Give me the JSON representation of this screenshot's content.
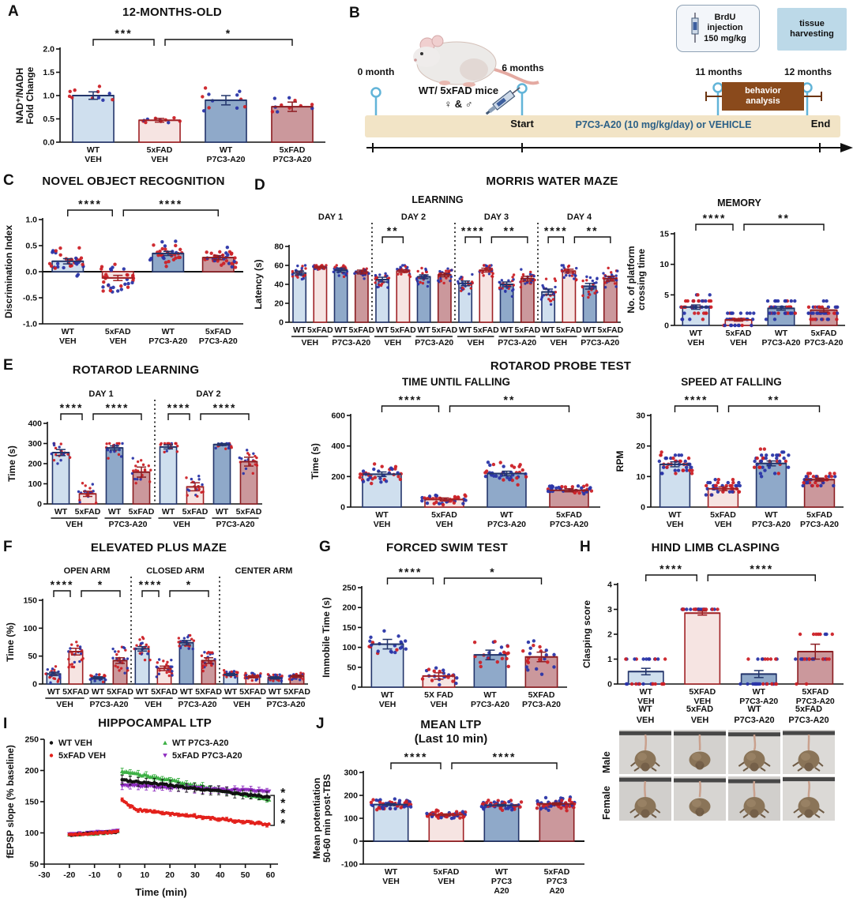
{
  "palette": {
    "bar_fills": [
      "#cfdfee",
      "#f6e4e2",
      "#8fa9c9",
      "#cb989c"
    ],
    "bar_strokes": [
      "#23356b",
      "#a02125",
      "#23356b",
      "#8c1d22"
    ],
    "point_red": "#cc2127",
    "point_blue": "#2a35a8",
    "axis": "#111111"
  },
  "groups": {
    "morris": {
      "title": "MORRIS WATER MAZE"
    },
    "rotarod_probe": {
      "title": "ROTAROD PROBE TEST"
    }
  },
  "timeline": {
    "panel": "B",
    "milestones": [
      "0 month",
      "6 months",
      "11 months",
      "12 months"
    ],
    "mice_line1": "WT/ 5xFAD mice",
    "mice_line2": "♀ & ♂",
    "start_label": "Start",
    "band_label": "P7C3-A20 (10 mg/kg/day) or VEHICLE",
    "end_label": "End",
    "brdu_line1": "BrdU",
    "brdu_line2": "injection",
    "brdu_line3": "150 mg/kg",
    "tissue_line1": "tissue",
    "tissue_line2": "harvesting",
    "behavior_line1": "behavior",
    "behavior_line2": "analysis"
  },
  "photos": {
    "columns": [
      [
        "WT",
        "VEH"
      ],
      [
        "5xFAD",
        "VEH"
      ],
      [
        "WT",
        "P7C3-A20"
      ],
      [
        "5xFAD",
        "P7C3-A20"
      ]
    ],
    "rows": [
      "Male",
      "Female"
    ]
  },
  "chart_data": [
    {
      "panel": "A",
      "type": "bar",
      "title": "12-MONTHS-OLD",
      "ylabel": [
        "NAD⁺/NADH",
        "Fold Change"
      ],
      "ylim": [
        0,
        2
      ],
      "yticks": [
        0,
        0.5,
        1,
        1.5,
        2
      ],
      "ytick_labels": [
        "0.0",
        "0.5",
        "1.0",
        "1.5",
        "2.0"
      ],
      "categories": [
        [
          "WT",
          "VEH"
        ],
        [
          "5xFAD",
          "VEH"
        ],
        [
          "WT",
          "P7C3-A20"
        ],
        [
          "5xFAD",
          "P7C3-A20"
        ]
      ],
      "values": [
        1.0,
        0.47,
        0.9,
        0.76
      ],
      "errors": [
        0.08,
        0.04,
        0.1,
        0.1
      ],
      "npts": 11,
      "spread": [
        0.25,
        0.09,
        0.3,
        0.26
      ],
      "point_cap": 1.52,
      "point_floor": 0.3,
      "brackets": [
        {
          "a": 0,
          "b": 1,
          "stars": "***"
        },
        {
          "a": 1,
          "b": 3,
          "stars": "*"
        }
      ],
      "ml": 58
    },
    {
      "panel": "C",
      "type": "bar",
      "title": "NOVEL OBJECT RECOGNITION",
      "ylabel": "Discrimination Index",
      "ylim": [
        -1,
        1
      ],
      "yticks": [
        -1,
        -0.5,
        0,
        0.5,
        1
      ],
      "ytick_labels": [
        "-1.0",
        "-0.5",
        "0.0",
        "0.5",
        "1.0"
      ],
      "categories": [
        [
          "WT",
          "VEH"
        ],
        [
          "5xFAD",
          "VEH"
        ],
        [
          "WT",
          "P7C3-A20"
        ],
        [
          "5xFAD",
          "P7C3-A20"
        ]
      ],
      "values": [
        0.2,
        -0.12,
        0.35,
        0.27
      ],
      "errors": [
        0.05,
        0.05,
        0.04,
        0.04
      ],
      "npts": 34,
      "spread": [
        0.32,
        0.34,
        0.28,
        0.22
      ],
      "point_cap": 0.92,
      "point_floor": -0.85,
      "brackets": [
        {
          "a": 0,
          "b": 1,
          "stars": "****"
        },
        {
          "a": 1,
          "b": 3,
          "stars": "****"
        }
      ],
      "ml": 50
    },
    {
      "panel": "D",
      "type": "bar",
      "subtitle": "LEARNING",
      "ylabel": "Latency (s)",
      "ylim": [
        0,
        80
      ],
      "yticks": [
        0,
        20,
        40,
        60,
        80
      ],
      "ytick_labels": [
        "0",
        "20",
        "40",
        "60",
        "80"
      ],
      "categories": [
        [
          "WT"
        ],
        [
          "5xFAD"
        ],
        [
          "WT"
        ],
        [
          "5xFAD"
        ],
        [
          "WT"
        ],
        [
          "5xFAD"
        ],
        [
          "WT"
        ],
        [
          "5xFAD"
        ],
        [
          "WT"
        ],
        [
          "5xFAD"
        ],
        [
          "WT"
        ],
        [
          "5xFAD"
        ],
        [
          "WT"
        ],
        [
          "5xFAD"
        ],
        [
          "WT"
        ],
        [
          "5xFAD"
        ]
      ],
      "values": [
        52,
        58,
        55,
        53,
        45,
        54,
        48,
        50,
        41,
        55,
        40,
        46,
        32,
        54,
        38,
        46
      ],
      "errors": [
        2,
        1,
        2,
        2,
        2.5,
        1.5,
        2,
        2,
        2.5,
        2,
        2.5,
        2.5,
        3,
        2,
        3,
        2.5
      ],
      "npts": 26,
      "spread": [
        10,
        5,
        8,
        8,
        12,
        8,
        12,
        10,
        14,
        8,
        14,
        12,
        16,
        10,
        14,
        12
      ],
      "point_cap": 60,
      "point_floor": 8,
      "sections": [
        {
          "t": "DAY 1",
          "a": 0,
          "b": 3
        },
        {
          "t": "DAY 2",
          "a": 4,
          "b": 7
        },
        {
          "t": "DAY 3",
          "a": 8,
          "b": 11
        },
        {
          "t": "DAY 4",
          "a": 12,
          "b": 15
        }
      ],
      "underlines": [
        {
          "t": "VEH",
          "a": 0,
          "b": 1
        },
        {
          "t": "P7C3-A20",
          "a": 2,
          "b": 3
        },
        {
          "t": "VEH",
          "a": 4,
          "b": 5
        },
        {
          "t": "P7C3-A20",
          "a": 6,
          "b": 7
        },
        {
          "t": "VEH",
          "a": 8,
          "b": 9
        },
        {
          "t": "P7C3-A20",
          "a": 10,
          "b": 11
        },
        {
          "t": "VEH",
          "a": 12,
          "b": 13
        },
        {
          "t": "P7C3-A20",
          "a": 14,
          "b": 15
        }
      ],
      "brackets": [
        {
          "a": 4,
          "b": 5,
          "stars": "**"
        },
        {
          "a": 8,
          "b": 9,
          "stars": "****"
        },
        {
          "a": 9,
          "b": 11,
          "stars": "**"
        },
        {
          "a": 12,
          "b": 13,
          "stars": "****"
        },
        {
          "a": 13,
          "b": 15,
          "stars": "**"
        }
      ],
      "ml": 46,
      "mr": 4
    },
    {
      "type": "bar",
      "subtitle": "MEMORY",
      "ylabel": [
        "No. of platform",
        "crossing time"
      ],
      "ylim": [
        0,
        15
      ],
      "yticks": [
        0,
        5,
        10,
        15
      ],
      "ytick_labels": [
        "0",
        "5",
        "10",
        "15"
      ],
      "categories": [
        [
          "WT",
          "VEH"
        ],
        [
          "5xFAD",
          "VEH"
        ],
        [
          "WT",
          "P7C3-A20"
        ],
        [
          "5xFAD",
          "P7C3-A20"
        ]
      ],
      "values": [
        3,
        0.9,
        2.8,
        2.5
      ],
      "errors": [
        0.35,
        0.2,
        0.3,
        0.3
      ],
      "npts": 40,
      "spread": [
        2.6,
        1.4,
        2.1,
        2.1
      ],
      "point_cap": 10,
      "point_floor": 0,
      "round": 1,
      "brackets": [
        {
          "a": 0,
          "b": 1,
          "stars": "****"
        },
        {
          "a": 1,
          "b": 3,
          "stars": "**"
        }
      ],
      "ml": 62
    },
    {
      "panel": "E",
      "type": "bar",
      "title": "ROTAROD LEARNING",
      "ylabel": "Time (s)",
      "ylim": [
        0,
        400
      ],
      "yticks": [
        0,
        100,
        200,
        300,
        400
      ],
      "ytick_labels": [
        "0",
        "100",
        "200",
        "300",
        "400"
      ],
      "categories": [
        [
          "WT"
        ],
        [
          "5xFAD"
        ],
        [
          "WT"
        ],
        [
          "5xFAD"
        ],
        [
          "WT"
        ],
        [
          "5xFAD"
        ],
        [
          "WT"
        ],
        [
          "5xFAD"
        ]
      ],
      "values": [
        255,
        50,
        278,
        158,
        283,
        85,
        295,
        210
      ],
      "errors": [
        15,
        13,
        10,
        25,
        10,
        20,
        5,
        22
      ],
      "npts": 20,
      "spread": [
        80,
        60,
        70,
        90,
        60,
        70,
        30,
        80
      ],
      "point_cap": 300,
      "point_floor": 5,
      "sections": [
        {
          "t": "DAY 1",
          "a": 0,
          "b": 3
        },
        {
          "t": "DAY 2",
          "a": 4,
          "b": 7
        }
      ],
      "underlines": [
        {
          "t": "VEH",
          "a": 0,
          "b": 1
        },
        {
          "t": "P7C3-A20",
          "a": 2,
          "b": 3
        },
        {
          "t": "VEH",
          "a": 4,
          "b": 5
        },
        {
          "t": "P7C3-A20",
          "a": 6,
          "b": 7
        }
      ],
      "brackets": [
        {
          "a": 0,
          "b": 1,
          "stars": "****"
        },
        {
          "a": 1,
          "b": 3,
          "stars": "****"
        },
        {
          "a": 4,
          "b": 5,
          "stars": "****"
        },
        {
          "a": 5,
          "b": 7,
          "stars": "****"
        }
      ],
      "ml": 52
    },
    {
      "type": "bar",
      "subtitle": "TIME UNTIL FALLING",
      "ylabel": "Time (s)",
      "ylim": [
        0,
        600
      ],
      "yticks": [
        0,
        200,
        400,
        600
      ],
      "ytick_labels": [
        "0",
        "200",
        "400",
        "600"
      ],
      "categories": [
        [
          "WT",
          "VEH"
        ],
        [
          "5xFAD",
          "VEH"
        ],
        [
          "WT",
          "P7C3-A20"
        ],
        [
          "5xFAD",
          "P7C3-A20"
        ]
      ],
      "values": [
        215,
        50,
        220,
        110
      ],
      "errors": [
        15,
        10,
        15,
        10
      ],
      "npts": 38,
      "spread": [
        75,
        45,
        95,
        55
      ],
      "point_cap": 500,
      "point_floor": 10,
      "brackets": [
        {
          "a": 0,
          "b": 1,
          "stars": "****"
        },
        {
          "a": 1,
          "b": 3,
          "stars": "**"
        }
      ],
      "ml": 52
    },
    {
      "type": "bar",
      "subtitle": "SPEED AT FALLING",
      "ylabel": "RPM",
      "ylim": [
        0,
        30
      ],
      "yticks": [
        0,
        10,
        20,
        30
      ],
      "ytick_labels": [
        "0",
        "10",
        "20",
        "30"
      ],
      "categories": [
        [
          "WT",
          "VEH"
        ],
        [
          "5xFAD",
          "VEH"
        ],
        [
          "WT",
          "P7C3-A20"
        ],
        [
          "5xFAD",
          "P7C3-A20"
        ]
      ],
      "values": [
        14,
        6,
        14.3,
        9
      ],
      "errors": [
        0.8,
        0.6,
        0.8,
        0.5
      ],
      "npts": 42,
      "spread": [
        4.5,
        3,
        5.5,
        2.8
      ],
      "point_cap": 28,
      "point_floor": 3,
      "round": 1,
      "brackets": [
        {
          "a": 0,
          "b": 1,
          "stars": "****"
        },
        {
          "a": 1,
          "b": 3,
          "stars": "**"
        }
      ],
      "ml": 46
    },
    {
      "panel": "F",
      "type": "bar",
      "title": "ELEVATED PLUS MAZE",
      "ylabel": "Time (%)",
      "ylim": [
        0,
        150
      ],
      "yticks": [
        0,
        50,
        100,
        150
      ],
      "ytick_labels": [
        "0",
        "50",
        "100",
        "150"
      ],
      "categories": [
        [
          "WT"
        ],
        [
          "5XFAD"
        ],
        [
          "WT"
        ],
        [
          "5XFAD"
        ],
        [
          "WT"
        ],
        [
          "5XFAD"
        ],
        [
          "WT"
        ],
        [
          "5XFAD"
        ],
        [
          "WT"
        ],
        [
          "5XFAD"
        ],
        [
          "WT"
        ],
        [
          "5XFAD"
        ]
      ],
      "values": [
        18,
        58,
        11,
        42,
        63,
        28,
        74,
        42,
        17,
        13,
        11,
        14
      ],
      "errors": [
        3,
        6,
        2,
        5,
        4,
        4,
        4,
        5,
        2,
        2,
        2,
        2
      ],
      "npts": 24,
      "spread": [
        18,
        32,
        9,
        30,
        24,
        20,
        14,
        24,
        11,
        9,
        8,
        10
      ],
      "point_cap": 100,
      "point_floor": 0,
      "sections": [
        {
          "t": "OPEN ARM",
          "a": 0,
          "b": 3
        },
        {
          "t": "CLOSED ARM",
          "a": 4,
          "b": 7
        },
        {
          "t": "CENTER ARM",
          "a": 8,
          "b": 11
        }
      ],
      "underlines": [
        {
          "t": "VEH",
          "a": 0,
          "b": 1
        },
        {
          "t": "P7C3-A20",
          "a": 2,
          "b": 3
        },
        {
          "t": "VEH",
          "a": 4,
          "b": 5
        },
        {
          "t": "P7C3-A20",
          "a": 6,
          "b": 7
        },
        {
          "t": "VEH",
          "a": 8,
          "b": 9
        },
        {
          "t": "P7C3-A20",
          "a": 10,
          "b": 11
        }
      ],
      "brackets": [
        {
          "a": 0,
          "b": 1,
          "stars": "****"
        },
        {
          "a": 1,
          "b": 3,
          "stars": "*"
        },
        {
          "a": 4,
          "b": 5,
          "stars": "****"
        },
        {
          "a": 5,
          "b": 7,
          "stars": "*"
        }
      ],
      "ml": 48
    },
    {
      "panel": "G",
      "type": "bar",
      "title": "FORCED SWIM TEST",
      "ylabel": "Immobile Time (s)",
      "ylim": [
        0,
        250
      ],
      "yticks": [
        0,
        50,
        100,
        150,
        200,
        250
      ],
      "ytick_labels": [
        "0",
        "50",
        "100",
        "150",
        "200",
        "250"
      ],
      "categories": [
        [
          "WT",
          "VEH"
        ],
        [
          "5X FAD",
          "VEH"
        ],
        [
          "WT",
          "P7C3-A20"
        ],
        [
          "5XFAD",
          "P7C3-A20"
        ]
      ],
      "values": [
        108,
        28,
        81,
        76
      ],
      "errors": [
        12,
        8,
        12,
        12
      ],
      "npts": 22,
      "spread": [
        48,
        28,
        48,
        58
      ],
      "point_cap": 205,
      "point_floor": 2,
      "brackets": [
        {
          "a": 0,
          "b": 1,
          "stars": "****"
        },
        {
          "a": 1,
          "b": 3,
          "stars": "*"
        }
      ],
      "ml": 52
    },
    {
      "panel": "H",
      "type": "bar",
      "title": "HIND LIMB CLASPING",
      "ylabel": "Clasping score",
      "ylim": [
        0,
        4
      ],
      "yticks": [
        0,
        1,
        2,
        3,
        4
      ],
      "ytick_labels": [
        "0",
        "1",
        "2",
        "3",
        "4"
      ],
      "categories": [
        [
          "WT",
          "VEH"
        ],
        [
          "5XFAD",
          "VEH"
        ],
        [
          "WT",
          "P7C3-A20"
        ],
        [
          "5XFAD",
          "P7C3-A20"
        ]
      ],
      "values": [
        0.5,
        2.85,
        0.4,
        1.3
      ],
      "errors": [
        0.13,
        0.08,
        0.14,
        0.3
      ],
      "npts": 26,
      "spread": [
        0.6,
        0.4,
        0.6,
        1.3
      ],
      "point_cap": 3,
      "point_floor": 0,
      "round": 1,
      "brackets": [
        {
          "a": 0,
          "b": 1,
          "stars": "****"
        },
        {
          "a": 1,
          "b": 3,
          "stars": "****"
        }
      ],
      "ml": 46
    },
    {
      "panel": "I",
      "type": "line",
      "title": "HIPPOCAMPAL LTP",
      "xlabel": "Time (min)",
      "ylabel": "fEPSP slope (% baseline)",
      "xlim": [
        -30,
        63
      ],
      "ylim": [
        50,
        250
      ],
      "xticks": [
        -30,
        -20,
        -10,
        0,
        10,
        20,
        30,
        40,
        50,
        60
      ],
      "yticks": [
        50,
        100,
        150,
        200,
        250
      ],
      "series": [
        {
          "name": "WT VEH",
          "color": "#111111",
          "marker": "circle",
          "baseline": [
            97,
            102
          ],
          "post_start": 185,
          "post_end": 157,
          "err": 7
        },
        {
          "name": "5xFAD VEH",
          "color": "#e3201b",
          "marker": "circle",
          "baseline": [
            97,
            102
          ],
          "post_start": 152,
          "post_end": 113,
          "knee_x": 7,
          "knee_y": 137,
          "err": 3
        },
        {
          "name": "WT P7C3-A20",
          "color": "#3cb044",
          "marker": "triangle",
          "baseline": [
            97,
            102
          ],
          "post_start": 199,
          "post_end": 154,
          "err": 5
        },
        {
          "name": "5xFAD P7C3-A20",
          "color": "#8e2bbf",
          "marker": "triangle-down",
          "baseline": [
            98,
            103
          ],
          "post_start": 176,
          "post_end": 166,
          "err": 6
        }
      ],
      "sig": {
        "stars": "****",
        "y_top": 160,
        "y_bot": 112
      }
    },
    {
      "panel": "J",
      "type": "bar",
      "title": "MEAN LTP",
      "title2": "(Last 10 min)",
      "ylabel": [
        "Mean potentiation",
        "50-60 min post-TBS"
      ],
      "ylim": [
        -100,
        300
      ],
      "yticks": [
        -100,
        0,
        100,
        200,
        300
      ],
      "ytick_labels": [
        "-100",
        "0",
        "100",
        "200",
        "300"
      ],
      "categories": [
        [
          "WT",
          "VEH"
        ],
        [
          "5xFAD",
          "VEH"
        ],
        [
          "WT",
          "P7C3",
          "A20"
        ],
        [
          "5xFAD",
          "P7C3",
          "A20"
        ]
      ],
      "values": [
        160,
        115,
        157,
        163
      ],
      "errors": [
        4,
        4,
        4,
        5
      ],
      "npts": 60,
      "spread": [
        26,
        22,
        26,
        32
      ],
      "point_cap": 255,
      "point_floor": 25,
      "brackets": [
        {
          "a": 0,
          "b": 1,
          "stars": "****"
        },
        {
          "a": 1,
          "b": 3,
          "stars": "****"
        }
      ],
      "ml": 66
    }
  ]
}
